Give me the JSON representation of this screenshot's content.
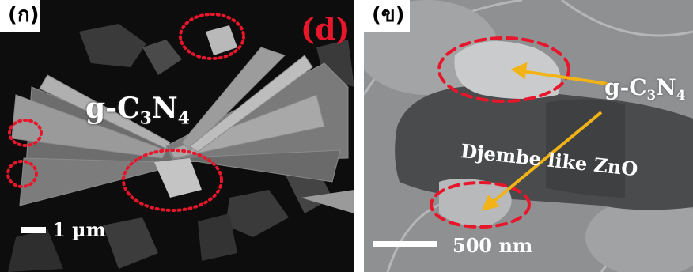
{
  "panel_a": {
    "tag": "(ก)",
    "label_d": "(d)",
    "material_main": "g-C",
    "material_sub1": "3",
    "material_mid": "N",
    "material_sub2": "4",
    "scale_bar": "1 µm"
  },
  "panel_b": {
    "tag": "(ข)",
    "material_main": "g-C",
    "material_sub1": "3",
    "material_mid": "N",
    "material_sub2": "4",
    "crystal_label": "Djembe like ZnO",
    "scale_bar": "500 nm"
  },
  "colors": {
    "highlight_ellipse": "#e8162b",
    "arrow": "#f2b316",
    "sem_background": "#0d0d0d",
    "tem_background": "#8e9092"
  },
  "icons": {
    "pointer": "arrow-icon",
    "region_marker": "dashed-ellipse"
  }
}
